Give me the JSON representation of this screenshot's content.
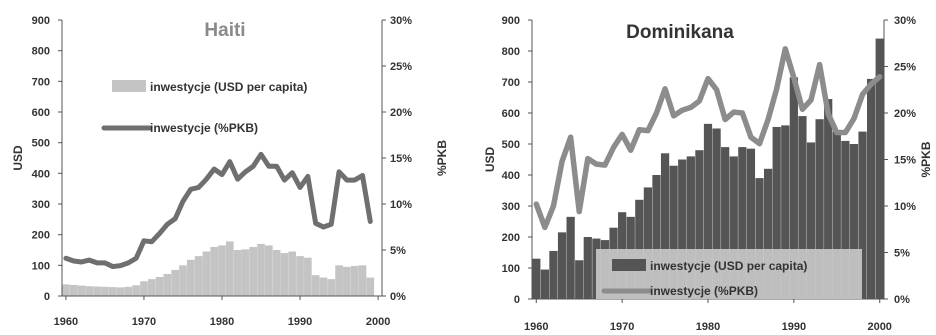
{
  "chart_data": [
    {
      "type": "bar+line",
      "title": "Haiti",
      "ylabel": "USD",
      "y2label": "%PKB",
      "ylim": [
        0,
        900
      ],
      "y2lim": [
        0,
        30
      ],
      "yticks": [
        "0",
        "100",
        "200",
        "300",
        "400",
        "500",
        "600",
        "700",
        "800",
        "900"
      ],
      "y2ticks": [
        "0%",
        "5%",
        "10%",
        "15%",
        "20%",
        "25%",
        "30%"
      ],
      "xticks": [
        "1960",
        "1970",
        "1980",
        "1990",
        "2000"
      ],
      "xlim": [
        1959.5,
        2000.5
      ],
      "grid": false,
      "legend_placement": "top-center",
      "colors": {
        "bars": "#c4c4c4",
        "line": "#6f6f6f",
        "title": "#8a8a8a"
      },
      "x": [
        1960,
        1961,
        1962,
        1963,
        1964,
        1965,
        1966,
        1967,
        1968,
        1969,
        1970,
        1971,
        1972,
        1973,
        1974,
        1975,
        1976,
        1977,
        1978,
        1979,
        1980,
        1981,
        1982,
        1983,
        1984,
        1985,
        1986,
        1987,
        1988,
        1989,
        1990,
        1991,
        1992,
        1993,
        1994,
        1995,
        1996,
        1997,
        1998,
        1999
      ],
      "series": [
        {
          "name": "inwestycje (USD per capita)",
          "kind": "bar",
          "axis": "left",
          "values": [
            38,
            36,
            34,
            32,
            31,
            30,
            29,
            28,
            30,
            35,
            48,
            55,
            62,
            72,
            85,
            100,
            118,
            130,
            145,
            160,
            165,
            178,
            150,
            152,
            160,
            170,
            165,
            150,
            140,
            145,
            130,
            125,
            68,
            60,
            55,
            100,
            95,
            98,
            100,
            60
          ]
        },
        {
          "name": "inwestycje (%PKB)",
          "kind": "line",
          "axis": "right",
          "values": [
            4.1,
            3.8,
            3.7,
            3.9,
            3.6,
            3.6,
            3.2,
            3.3,
            3.6,
            4.1,
            6.0,
            5.9,
            6.8,
            7.8,
            8.4,
            10.3,
            11.6,
            11.8,
            12.7,
            13.8,
            13.2,
            14.6,
            12.7,
            13.5,
            14.1,
            15.4,
            14.1,
            14.1,
            12.6,
            13.4,
            11.8,
            13.0,
            7.9,
            7.5,
            7.8,
            13.5,
            12.6,
            12.6,
            13.1,
            8.1
          ]
        }
      ]
    },
    {
      "type": "bar+line",
      "title": "Dominikana",
      "ylabel": "USD",
      "y2label": "%PKB",
      "ylim": [
        0,
        900
      ],
      "y2lim": [
        0,
        30
      ],
      "yticks": [
        "0",
        "100",
        "200",
        "300",
        "400",
        "500",
        "600",
        "700",
        "800",
        "900"
      ],
      "y2ticks": [
        "0%",
        "5%",
        "10%",
        "15%",
        "20%",
        "25%",
        "30%"
      ],
      "xticks": [
        "1960",
        "1970",
        "1980",
        "1990",
        "2000"
      ],
      "xlim": [
        1959.5,
        2000.5
      ],
      "grid": false,
      "legend_placement": "bottom-center",
      "colors": {
        "bars": "#555555",
        "line": "#8c8c8c",
        "title": "#333333",
        "legend_box": "#c8c8c8"
      },
      "x": [
        1960,
        1961,
        1962,
        1963,
        1964,
        1965,
        1966,
        1967,
        1968,
        1969,
        1970,
        1971,
        1972,
        1973,
        1974,
        1975,
        1976,
        1977,
        1978,
        1979,
        1980,
        1981,
        1982,
        1983,
        1984,
        1985,
        1986,
        1987,
        1988,
        1989,
        1990,
        1991,
        1992,
        1993,
        1994,
        1995,
        1996,
        1997,
        1998,
        1999,
        2000
      ],
      "series": [
        {
          "name": "inwestycje (USD per capita)",
          "kind": "bar",
          "axis": "left",
          "values": [
            130,
            95,
            155,
            215,
            265,
            125,
            200,
            195,
            190,
            230,
            280,
            265,
            320,
            360,
            400,
            470,
            430,
            450,
            460,
            480,
            565,
            550,
            490,
            460,
            490,
            485,
            390,
            420,
            555,
            560,
            715,
            590,
            505,
            580,
            645,
            540,
            510,
            500,
            540,
            710,
            840
          ]
        },
        {
          "name": "inwestycje (%PKB)",
          "kind": "line",
          "axis": "right",
          "values": [
            10.2,
            7.7,
            10.0,
            14.8,
            17.4,
            9.4,
            15.1,
            14.5,
            14.4,
            16.3,
            17.7,
            16.0,
            18.2,
            18.1,
            20.0,
            22.6,
            19.7,
            20.3,
            20.6,
            21.3,
            23.7,
            22.5,
            19.3,
            20.1,
            20.0,
            17.4,
            16.7,
            19.3,
            22.6,
            26.9,
            23.8,
            20.4,
            21.4,
            25.2,
            19.9,
            17.9,
            17.9,
            19.4,
            22.0,
            23.1,
            23.9
          ]
        }
      ]
    }
  ]
}
